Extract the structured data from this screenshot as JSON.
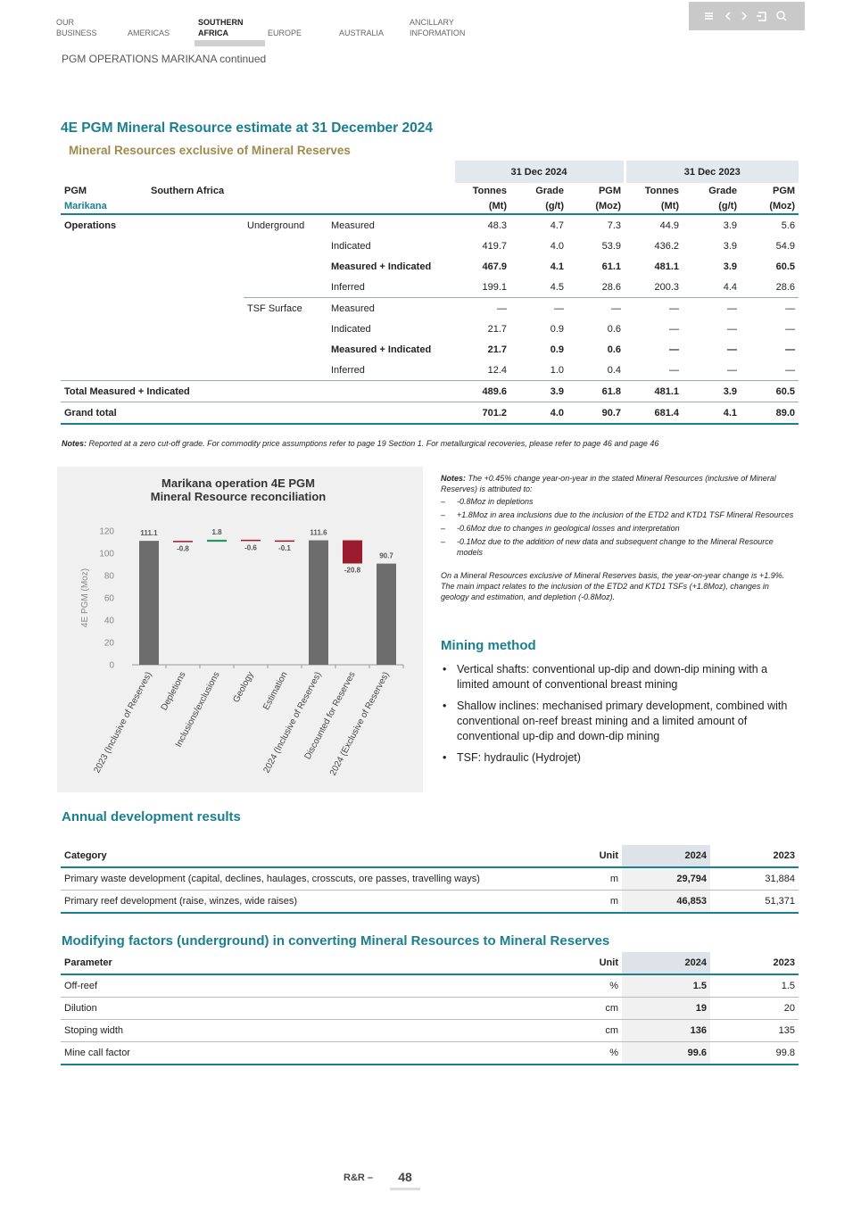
{
  "nav": [
    [
      "OUR",
      "BUSINESS"
    ],
    [
      "AMERICAS"
    ],
    [
      "SOUTHERN",
      "AFRICA"
    ],
    [
      "EUROPE"
    ],
    [
      "AUSTRALIA"
    ],
    [
      "ANCILLARY",
      "INFORMATION"
    ]
  ],
  "breadcrumb": "PGM OPERATIONS MARIKANA continued",
  "section_title": "4E PGM Mineral Resource estimate at 31 December 2024",
  "section_subtitle": "Mineral Resources exclusive of Mineral Reserves",
  "resource_table": {
    "groups": [
      "31 Dec 2024",
      "31 Dec 2023"
    ],
    "header": [
      "PGM",
      "Southern Africa",
      null,
      null,
      "Tonnes",
      "Grade",
      "PGM",
      "Tonnes",
      "Grade",
      "PGM"
    ],
    "units": [
      "Marikana",
      null,
      null,
      null,
      "(Mt)",
      "(g/t)",
      "(Moz)",
      "(Mt)",
      "(g/t)",
      "(Moz)"
    ],
    "rows": [
      [
        "Operations",
        null,
        "Underground",
        "Measured",
        "48.3",
        "4.7",
        "7.3",
        "44.9",
        "3.9",
        "5.6"
      ],
      [
        null,
        null,
        null,
        "Indicated",
        "419.7",
        "4.0",
        "53.9",
        "436.2",
        "3.9",
        "54.9"
      ],
      [
        null,
        null,
        null,
        "Measured + Indicated",
        "467.9",
        "4.1",
        "61.1",
        "481.1",
        "3.9",
        "60.5"
      ],
      [
        null,
        null,
        null,
        "Inferred",
        "199.1",
        "4.5",
        "28.6",
        "200.3",
        "4.4",
        "28.6"
      ],
      [
        null,
        null,
        "TSF Surface",
        "Measured",
        "—",
        "—",
        "—",
        "—",
        "—",
        "—"
      ],
      [
        null,
        null,
        null,
        "Indicated",
        "21.7",
        "0.9",
        "0.6",
        "—",
        "—",
        "—"
      ],
      [
        null,
        null,
        null,
        "Measured + Indicated",
        "21.7",
        "0.9",
        "0.6",
        "—",
        "—",
        "—"
      ],
      [
        null,
        null,
        null,
        "Inferred",
        "12.4",
        "1.0",
        "0.4",
        "—",
        "—",
        "—"
      ],
      [
        "Total Measured + Indicated",
        null,
        null,
        null,
        "489.6",
        "3.9",
        "61.8",
        "481.1",
        "3.9",
        "60.5"
      ],
      [
        "Grand total",
        null,
        null,
        null,
        "701.2",
        "4.0",
        "90.7",
        "681.4",
        "4.1",
        "89.0"
      ]
    ]
  },
  "table_note": {
    "label": "Notes:",
    "text": "Reported at a zero cut-off grade. For commodity price assumptions refer to page 19 Section 1. For metallurgical recoveries, please refer to page 46 and page 46"
  },
  "chart_data": {
    "type": "waterfall",
    "title": [
      "Marikana operation 4E PGM",
      "Mineral Resource reconciliation"
    ],
    "categories": [
      "2023 (Inclusive of Reserves)",
      "Depletions",
      "Inclusions/exclusions",
      "Geology",
      "Estimation",
      "2024 (Inclusive of Reserves)",
      "Discounted for Reserves",
      "2024 (Exclusive of Reserves)"
    ],
    "values": [
      111.1,
      -0.8,
      1.8,
      -0.6,
      -0.1,
      111.6,
      -20.8,
      90.7
    ],
    "totals": [
      true,
      false,
      false,
      false,
      false,
      true,
      false,
      true
    ],
    "colors": {
      "total": "#6d6d6d",
      "increase": "#1e9a5a",
      "decrease": "#9b1c2e"
    },
    "y_label": "4E PGM (Moz)",
    "ylim": [
      0,
      120
    ],
    "yticks": [
      0,
      20,
      40,
      60,
      80,
      100,
      120
    ]
  },
  "chart_notes": {
    "label": "Notes:",
    "intro": "The +0.45% change year-on-year in the stated Mineral Resources (inclusive of Mineral Reserves) is attributed to:",
    "items": [
      "-0.8Moz in depletions",
      "+1.8Moz in area inclusions due to the inclusion of the ETD2 and KTD1 TSF Mineral Resources",
      "-0.6Moz due to changes in geological losses and interpretation",
      "-0.1Moz due to the addition of new data and subsequent change to the Mineral Resource models"
    ],
    "paragraph": "On a Mineral Resources exclusive of Mineral Reserves basis, the year-on-year change is +1.9%. The main impact relates to the inclusion of the ETD2 and KTD1 TSFs (+1.8Moz), changes in geology and estimation, and depletion (-0.8Moz)."
  },
  "mining_method": {
    "title": "Mining method",
    "items": [
      "Vertical shafts: conventional up-dip and down-dip mining with a limited amount of conventional breast mining",
      "Shallow inclines: mechanised primary development, combined with conventional on-reef breast mining and a limited amount of conventional up-dip and down-dip mining",
      "TSF: hydraulic (Hydrojet)"
    ]
  },
  "annual_development": {
    "title": "Annual development results",
    "header": [
      "Category",
      "Unit",
      "2024",
      "2023"
    ],
    "rows": [
      [
        "Primary waste development (capital, declines, haulages, crosscuts, ore passes, travelling ways)",
        "m",
        "29,794",
        "31,884"
      ],
      [
        "Primary reef development (raise, winzes, wide raises)",
        "m",
        "46,853",
        "51,371"
      ]
    ]
  },
  "modifying_factors": {
    "title": "Modifying factors (underground) in converting Mineral Resources to Mineral Reserves",
    "header": [
      "Parameter",
      "Unit",
      "2024",
      "2023"
    ],
    "rows": [
      [
        "Off-reef",
        "%",
        "1.5",
        "1.5"
      ],
      [
        "Dilution",
        "cm",
        "19",
        "20"
      ],
      [
        "Stoping width",
        "cm",
        "136",
        "135"
      ],
      [
        "Mine call factor",
        "%",
        "99.6",
        "99.8"
      ]
    ]
  },
  "footer": {
    "label": "R&R –",
    "page": "48"
  }
}
